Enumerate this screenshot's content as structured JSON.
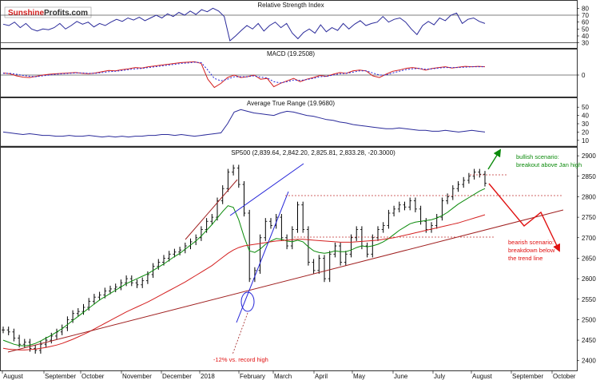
{
  "logo": {
    "part1": "Sunshine",
    "part2": "Profits.com"
  },
  "colors": {
    "price": "#000000",
    "ma_green": "#0a8a0a",
    "ma_red": "#d42020",
    "blue": "#2424d8",
    "trend": "#a02020",
    "red_dotted": "#c03030",
    "indicator": "#2a2a9a",
    "bull": "#0a8a0a",
    "bear": "#e01010"
  },
  "chart_data": [
    {
      "type": "line",
      "title": "Relative Strength Index",
      "y_ticks": [
        "80",
        "70",
        "60",
        "50",
        "40",
        "30"
      ],
      "ylim": [
        25,
        85
      ],
      "reference_levels": [
        70,
        30
      ],
      "values": [
        57,
        55,
        60,
        52,
        58,
        50,
        47,
        50,
        49,
        52,
        58,
        50,
        55,
        61,
        57,
        60,
        53,
        58,
        55,
        60,
        64,
        61,
        66,
        63,
        67,
        62,
        66,
        70,
        66,
        72,
        68,
        74,
        70,
        76,
        71,
        78,
        75,
        80,
        76,
        68,
        33,
        40,
        48,
        55,
        50,
        58,
        47,
        55,
        60,
        52,
        58,
        44,
        36,
        45,
        50,
        44,
        56,
        46,
        52,
        48,
        58,
        50,
        57,
        62,
        55,
        58,
        60,
        68,
        60,
        64,
        66,
        60,
        50,
        42,
        55,
        61,
        56,
        66,
        62,
        70,
        73,
        58,
        64,
        66,
        61,
        58
      ]
    },
    {
      "type": "line",
      "title": "MACD (19.2508)",
      "y_ticks": [
        "0"
      ],
      "ylim": [
        -50,
        50
      ],
      "series": [
        {
          "name": "MACD",
          "values": [
            5,
            3,
            -2,
            -5,
            -6,
            -3,
            0,
            2,
            3,
            4,
            5,
            6,
            4,
            3,
            5,
            8,
            11,
            10,
            13,
            15,
            18,
            17,
            20,
            22,
            24,
            26,
            28,
            30,
            31,
            32,
            28,
            -10,
            -30,
            -20,
            -6,
            0,
            -6,
            -4,
            0,
            -10,
            -8,
            -28,
            -20,
            -14,
            -8,
            -16,
            -10,
            -6,
            -1,
            -3,
            2,
            6,
            4,
            10,
            12,
            10,
            -2,
            -6,
            2,
            9,
            12,
            16,
            18,
            16,
            12,
            16,
            18,
            20,
            17,
            19,
            21,
            20,
            21,
            20
          ]
        },
        {
          "name": "Signal",
          "values": [
            4,
            4,
            2,
            -1,
            -3,
            -4,
            -2,
            0,
            2,
            3,
            4,
            5,
            5,
            4,
            4,
            6,
            8,
            9,
            11,
            13,
            15,
            16,
            18,
            20,
            22,
            24,
            26,
            28,
            29,
            31,
            30,
            12,
            -8,
            -14,
            -10,
            -4,
            -4,
            -4,
            -2,
            -5,
            -7,
            -16,
            -19,
            -16,
            -12,
            -13,
            -11,
            -8,
            -4,
            -3,
            0,
            3,
            4,
            7,
            10,
            10,
            5,
            0,
            0,
            5,
            9,
            13,
            15,
            16,
            14,
            15,
            17,
            18,
            18,
            18,
            19,
            20,
            20,
            20
          ]
        }
      ]
    },
    {
      "type": "line",
      "title": "Average True Range (19.9680)",
      "y_ticks": [
        "50",
        "40",
        "30",
        "20",
        "10"
      ],
      "ylim": [
        5,
        55
      ],
      "values": [
        20,
        19,
        18,
        17,
        18,
        17,
        16,
        16,
        15,
        15,
        16,
        15,
        15,
        16,
        15,
        14,
        15,
        14,
        15,
        14,
        15,
        15,
        16,
        16,
        17,
        17,
        16,
        17,
        16,
        15,
        16,
        17,
        18,
        19,
        30,
        44,
        47,
        45,
        43,
        42,
        41,
        40,
        43,
        45,
        44,
        42,
        40,
        39,
        37,
        35,
        34,
        32,
        31,
        29,
        28,
        27,
        26,
        25,
        24,
        24,
        25,
        24,
        23,
        22,
        22,
        21,
        21,
        22,
        21,
        20,
        21,
        22,
        21,
        20
      ]
    },
    {
      "type": "line",
      "title": "SP500 (2,839.64, 2,842.20, 2,825.81, 2,833.28, -20.3000)",
      "y_ticks": [
        "2900",
        "2850",
        "2800",
        "2750",
        "2700",
        "2650",
        "2600",
        "2550",
        "2500",
        "2450",
        "2400"
      ],
      "ylim": [
        2380,
        2910
      ],
      "x_tick_labels": [
        "August",
        "September",
        "October",
        "November",
        "December",
        "2018",
        "February",
        "March",
        "April",
        "May",
        "June",
        "July",
        "August",
        "September",
        "October"
      ],
      "series": [
        {
          "name": "SP500",
          "values": [
            2475,
            2470,
            2455,
            2440,
            2445,
            2430,
            2425,
            2440,
            2450,
            2460,
            2470,
            2480,
            2500,
            2515,
            2520,
            2530,
            2545,
            2555,
            2560,
            2570,
            2575,
            2580,
            2590,
            2600,
            2590,
            2585,
            2595,
            2610,
            2630,
            2640,
            2650,
            2660,
            2665,
            2670,
            2680,
            2690,
            2700,
            2720,
            2740,
            2750,
            2790,
            2820,
            2860,
            2870,
            2830,
            2760,
            2600,
            2620,
            2700,
            2740,
            2730,
            2750,
            2700,
            2680,
            2720,
            2780,
            2720,
            2640,
            2620,
            2650,
            2600,
            2660,
            2680,
            2640,
            2660,
            2700,
            2720,
            2680,
            2660,
            2700,
            2720,
            2730,
            2760,
            2770,
            2780,
            2775,
            2790,
            2770,
            2740,
            2720,
            2730,
            2750,
            2790,
            2800,
            2820,
            2830,
            2840,
            2850,
            2860,
            2855,
            2833
          ]
        },
        {
          "name": "MA short",
          "values": [
            2450,
            2445,
            2440,
            2437,
            2436,
            2438,
            2442,
            2448,
            2455,
            2462,
            2470,
            2478,
            2488,
            2498,
            2508,
            2518,
            2528,
            2538,
            2548,
            2556,
            2564,
            2572,
            2580,
            2588,
            2594,
            2600,
            2606,
            2612,
            2620,
            2628,
            2636,
            2645,
            2654,
            2662,
            2672,
            2682,
            2692,
            2704,
            2718,
            2732,
            2748,
            2764,
            2778,
            2774,
            2744,
            2702,
            2668,
            2664,
            2672,
            2684,
            2692,
            2698,
            2696,
            2692,
            2690,
            2694,
            2690,
            2678,
            2668,
            2664,
            2662,
            2664,
            2668,
            2666,
            2666,
            2670,
            2676,
            2680,
            2678,
            2680,
            2684,
            2690,
            2698,
            2708,
            2718,
            2726,
            2734,
            2738,
            2740,
            2742,
            2744,
            2748,
            2754,
            2762,
            2772,
            2782,
            2790,
            2798,
            2806,
            2814,
            2820
          ]
        },
        {
          "name": "MA long",
          "values": [
            2430,
            2428,
            2427,
            2426,
            2426,
            2427,
            2428,
            2430,
            2432,
            2435,
            2438,
            2442,
            2447,
            2452,
            2458,
            2464,
            2470,
            2477,
            2484,
            2491,
            2498,
            2505,
            2512,
            2519,
            2525,
            2531,
            2537,
            2543,
            2550,
            2557,
            2564,
            2571,
            2578,
            2585,
            2592,
            2600,
            2608,
            2616,
            2624,
            2632,
            2642,
            2652,
            2662,
            2670,
            2676,
            2680,
            2682,
            2684,
            2686,
            2688,
            2690,
            2692,
            2693,
            2694,
            2695,
            2696,
            2696,
            2695,
            2694,
            2693,
            2692,
            2691,
            2690,
            2689,
            2689,
            2689,
            2690,
            2691,
            2692,
            2693,
            2694,
            2696,
            2698,
            2700,
            2703,
            2706,
            2709,
            2712,
            2715,
            2718,
            2721,
            2724,
            2727,
            2730,
            2733,
            2736,
            2740,
            2744,
            2748,
            2752,
            2756
          ]
        }
      ],
      "reference_levels": [
        2850,
        2800,
        2700
      ],
      "annotations": [
        {
          "label": "bullish_scenario",
          "lines": [
            "bullish scenario:",
            "breakout above Jan high"
          ]
        },
        {
          "label": "bearish_scenario",
          "lines": [
            "bearish scenario:",
            "breakdown below",
            "the trend line"
          ]
        },
        {
          "label": "record_high_drop",
          "lines": [
            "-12% vs. record high"
          ]
        }
      ]
    }
  ]
}
